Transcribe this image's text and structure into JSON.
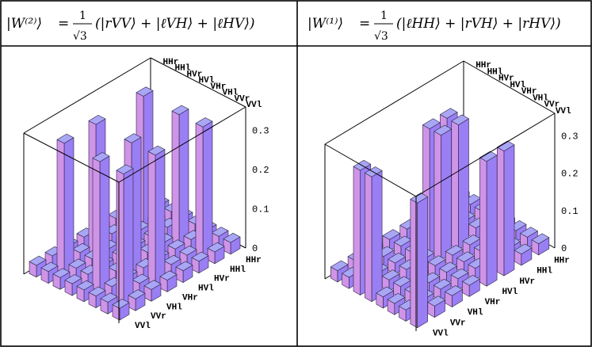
{
  "chart_data": [
    {
      "type": "bar3d",
      "title_state": "|W⁽²⁾⟩",
      "title_norm": "1",
      "title_sqrt": "√3",
      "title_terms": "(|rVV⟩ + |ℓVH⟩ + |ℓHV⟩)",
      "back_tick_labels": [
        "HHr",
        "HHl",
        "HVr",
        "HVl",
        "VHr",
        "VHl",
        "VVr",
        "VVl"
      ],
      "front_tick_labels": [
        "VVl",
        "VVr",
        "VHl",
        "VHr",
        "HVl",
        "HVr",
        "HHl",
        "HHr"
      ],
      "zticks": [
        "0",
        "0.1",
        "0.2",
        "0.3"
      ],
      "zlim": [
        0,
        0.36
      ],
      "bar_colors": {
        "left": "#9a7ef3",
        "right": "#cf94e8",
        "top": "#a9a6f6"
      },
      "grid": false
    },
    {
      "type": "bar3d",
      "title_state": "|W⁽¹⁾⟩",
      "title_norm": "1",
      "title_sqrt": "√3",
      "title_terms": "(|ℓHH⟩ + |rVH⟩ + |rHV⟩)",
      "back_tick_labels": [
        "HHr",
        "HHl",
        "HVr",
        "HVl",
        "VHr",
        "VHl",
        "VVr",
        "VVl"
      ],
      "front_tick_labels": [
        "VVl",
        "VVr",
        "VHl",
        "VHr",
        "HVl",
        "HVr",
        "HHl",
        "HHr"
      ],
      "zticks": [
        "0",
        "0.1",
        "0.2",
        "0.3"
      ],
      "zlim": [
        0,
        0.36
      ],
      "bar_colors": {
        "left": "#9a7ef3",
        "right": "#cf94e8",
        "top": "#a9a6f6"
      },
      "grid": false
    }
  ]
}
